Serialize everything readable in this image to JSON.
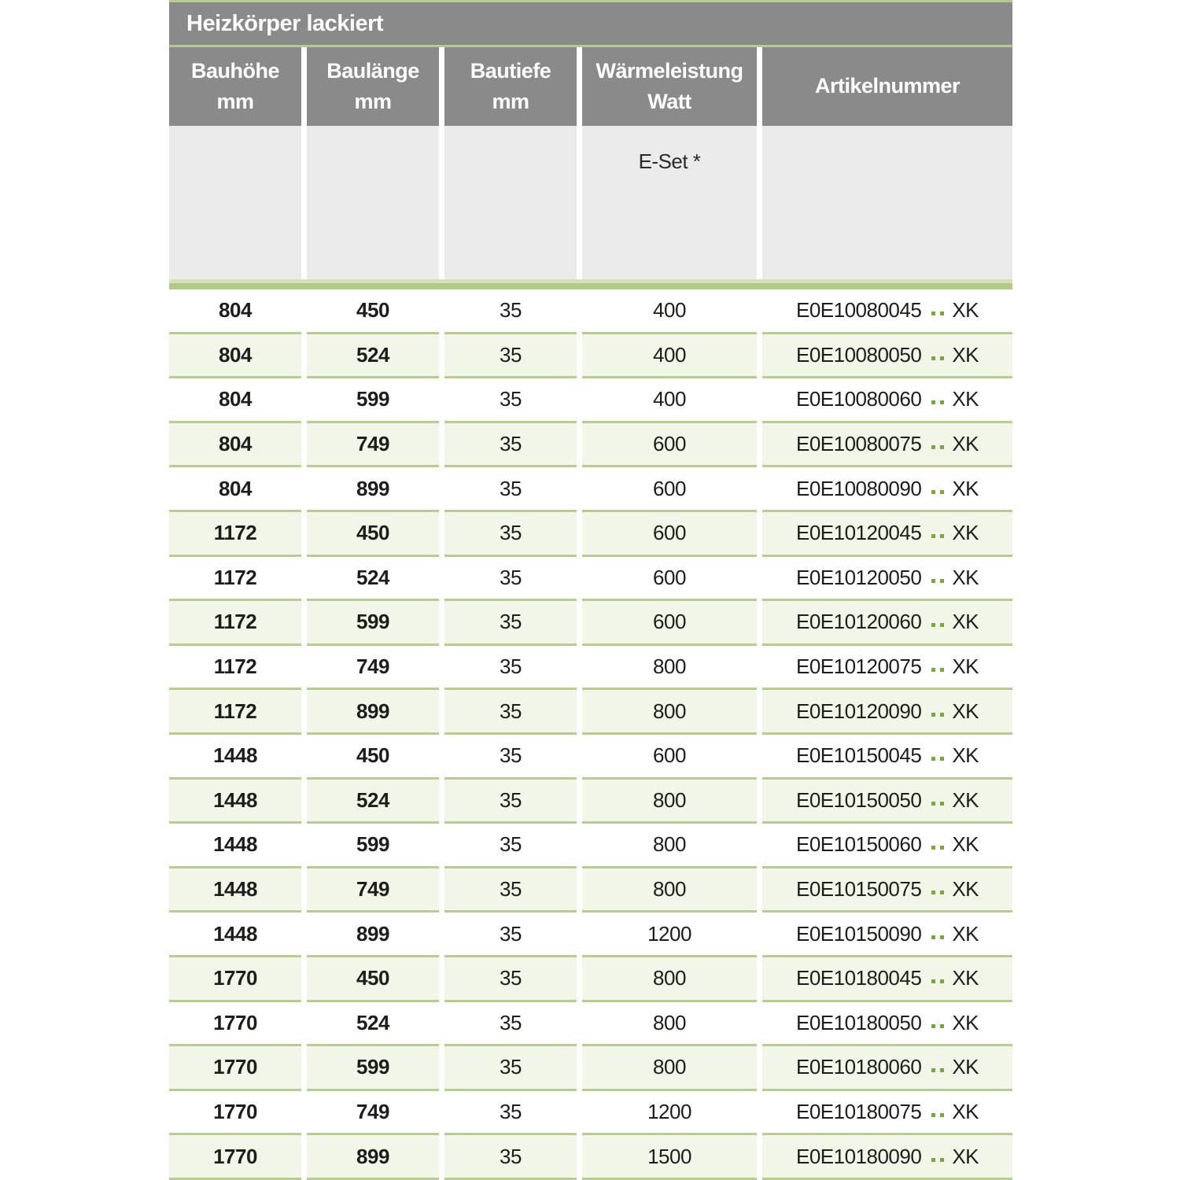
{
  "title": "Heizkörper lackiert",
  "columns": [
    {
      "line1": "Bauhöhe",
      "line2": "mm"
    },
    {
      "line1": "Baulänge",
      "line2": "mm"
    },
    {
      "line1": "Bautiefe",
      "line2": "mm"
    },
    {
      "line1": "Wärmeleistung",
      "line2": "Watt"
    },
    {
      "line1": "Artikelnummer",
      "line2": ""
    }
  ],
  "subheader": {
    "eset_label": "E-Set *"
  },
  "colors": {
    "accent_green": "#b5cb8e",
    "band_green": "#b0ca88",
    "row_green": "#f2f6e9",
    "header_gray": "#8a8a8a",
    "subheader_gray": "#ebebeb",
    "dot_green": "#76a83e"
  },
  "rows": [
    {
      "bauhoehe": "804",
      "baulaenge": "450",
      "bautiefe": "35",
      "watt": "400",
      "artikel_prefix": "E0E10080045",
      "artikel_suffix": "XK"
    },
    {
      "bauhoehe": "804",
      "baulaenge": "524",
      "bautiefe": "35",
      "watt": "400",
      "artikel_prefix": "E0E10080050",
      "artikel_suffix": "XK"
    },
    {
      "bauhoehe": "804",
      "baulaenge": "599",
      "bautiefe": "35",
      "watt": "400",
      "artikel_prefix": "E0E10080060",
      "artikel_suffix": "XK"
    },
    {
      "bauhoehe": "804",
      "baulaenge": "749",
      "bautiefe": "35",
      "watt": "600",
      "artikel_prefix": "E0E10080075",
      "artikel_suffix": "XK"
    },
    {
      "bauhoehe": "804",
      "baulaenge": "899",
      "bautiefe": "35",
      "watt": "600",
      "artikel_prefix": "E0E10080090",
      "artikel_suffix": "XK"
    },
    {
      "bauhoehe": "1172",
      "baulaenge": "450",
      "bautiefe": "35",
      "watt": "600",
      "artikel_prefix": "E0E10120045",
      "artikel_suffix": "XK"
    },
    {
      "bauhoehe": "1172",
      "baulaenge": "524",
      "bautiefe": "35",
      "watt": "600",
      "artikel_prefix": "E0E10120050",
      "artikel_suffix": "XK"
    },
    {
      "bauhoehe": "1172",
      "baulaenge": "599",
      "bautiefe": "35",
      "watt": "600",
      "artikel_prefix": "E0E10120060",
      "artikel_suffix": "XK"
    },
    {
      "bauhoehe": "1172",
      "baulaenge": "749",
      "bautiefe": "35",
      "watt": "800",
      "artikel_prefix": "E0E10120075",
      "artikel_suffix": "XK"
    },
    {
      "bauhoehe": "1172",
      "baulaenge": "899",
      "bautiefe": "35",
      "watt": "800",
      "artikel_prefix": "E0E10120090",
      "artikel_suffix": "XK"
    },
    {
      "bauhoehe": "1448",
      "baulaenge": "450",
      "bautiefe": "35",
      "watt": "600",
      "artikel_prefix": "E0E10150045",
      "artikel_suffix": "XK"
    },
    {
      "bauhoehe": "1448",
      "baulaenge": "524",
      "bautiefe": "35",
      "watt": "800",
      "artikel_prefix": "E0E10150050",
      "artikel_suffix": "XK"
    },
    {
      "bauhoehe": "1448",
      "baulaenge": "599",
      "bautiefe": "35",
      "watt": "800",
      "artikel_prefix": "E0E10150060",
      "artikel_suffix": "XK"
    },
    {
      "bauhoehe": "1448",
      "baulaenge": "749",
      "bautiefe": "35",
      "watt": "800",
      "artikel_prefix": "E0E10150075",
      "artikel_suffix": "XK"
    },
    {
      "bauhoehe": "1448",
      "baulaenge": "899",
      "bautiefe": "35",
      "watt": "1200",
      "artikel_prefix": "E0E10150090",
      "artikel_suffix": "XK"
    },
    {
      "bauhoehe": "1770",
      "baulaenge": "450",
      "bautiefe": "35",
      "watt": "800",
      "artikel_prefix": "E0E10180045",
      "artikel_suffix": "XK"
    },
    {
      "bauhoehe": "1770",
      "baulaenge": "524",
      "bautiefe": "35",
      "watt": "800",
      "artikel_prefix": "E0E10180050",
      "artikel_suffix": "XK"
    },
    {
      "bauhoehe": "1770",
      "baulaenge": "599",
      "bautiefe": "35",
      "watt": "800",
      "artikel_prefix": "E0E10180060",
      "artikel_suffix": "XK"
    },
    {
      "bauhoehe": "1770",
      "baulaenge": "749",
      "bautiefe": "35",
      "watt": "1200",
      "artikel_prefix": "E0E10180075",
      "artikel_suffix": "XK"
    },
    {
      "bauhoehe": "1770",
      "baulaenge": "899",
      "bautiefe": "35",
      "watt": "1500",
      "artikel_prefix": "E0E10180090",
      "artikel_suffix": "XK"
    }
  ]
}
